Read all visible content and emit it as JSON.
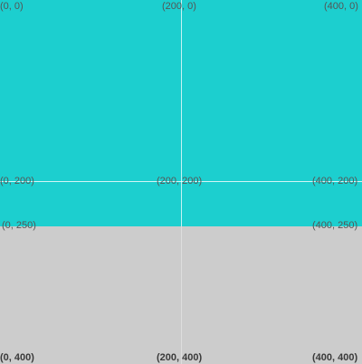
{
  "colors": {
    "top_panel": "#1ccfcf",
    "bottom_panel": "#cccccc",
    "guide_line": "#ffffff",
    "label_text": "#555555"
  },
  "labels": {
    "top_left": "(0, 0)",
    "top_center": "(200, 0)",
    "top_right": "(400, 0)",
    "mid_left": "(0, 200)",
    "mid_center": "(200, 200)",
    "mid_right": "(400, 200)",
    "split_left": "(0, 250)",
    "split_right": "(400, 250)",
    "bottom_left": "(0, 400)",
    "bottom_center": "(200, 400)",
    "bottom_right": "(400, 400)"
  }
}
